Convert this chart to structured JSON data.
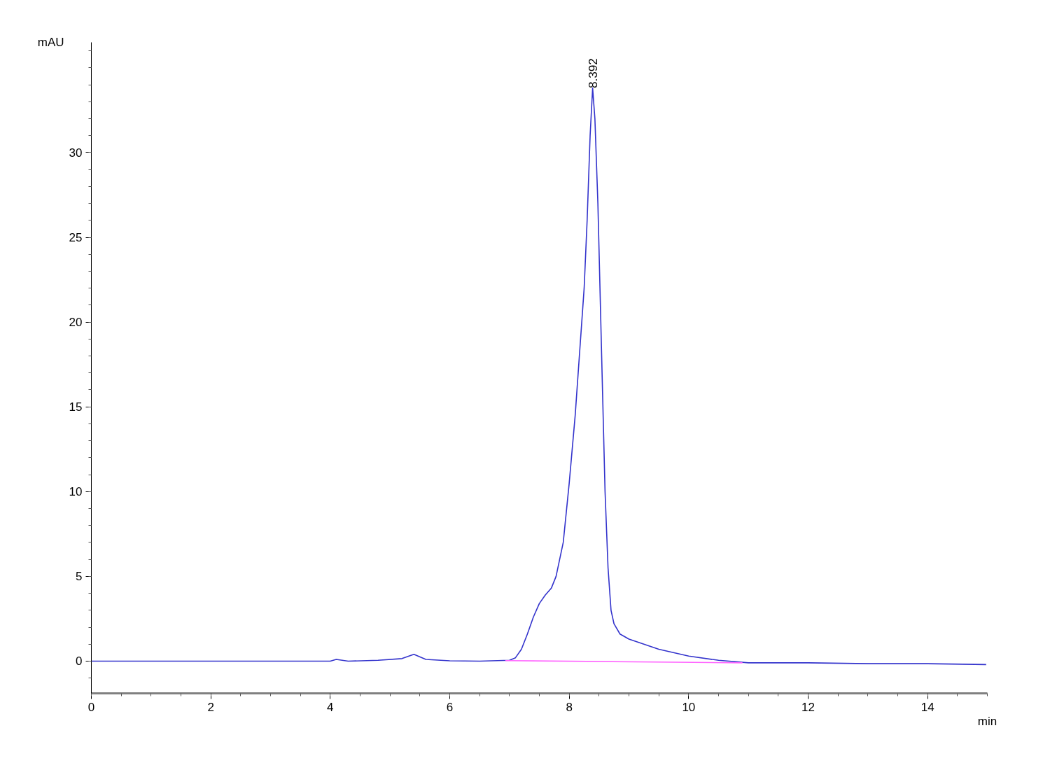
{
  "chart_data": {
    "type": "line",
    "xlabel": "min",
    "ylabel": "mAU",
    "xlim": [
      0,
      15
    ],
    "ylim": [
      -1.9,
      36.5
    ],
    "xticks": [
      0,
      2,
      4,
      6,
      8,
      10,
      12,
      14
    ],
    "yticks": [
      0,
      5,
      10,
      15,
      20,
      25,
      30
    ],
    "grid": false,
    "marker": "none",
    "line_style": "solid",
    "annotations": [
      {
        "text": "8.392",
        "x": 8.392,
        "y": 33.8
      }
    ],
    "series": [
      {
        "color": "#3333cc",
        "x": [
          0,
          1,
          2,
          3,
          4,
          4.1,
          4.3,
          4.8,
          5.2,
          5.4,
          5.6,
          6.0,
          6.5,
          7.0,
          7.1,
          7.2,
          7.3,
          7.4,
          7.5,
          7.6,
          7.7,
          7.78,
          7.9,
          8.0,
          8.1,
          8.2,
          8.25,
          8.3,
          8.35,
          8.392,
          8.43,
          8.48,
          8.55,
          8.6,
          8.65,
          8.7,
          8.75,
          8.85,
          9.0,
          9.5,
          10.0,
          10.5,
          11.0,
          12.0,
          13.0,
          14.0,
          14.98
        ],
        "values": [
          0,
          0,
          0,
          0,
          0,
          0.1,
          0,
          0.05,
          0.15,
          0.4,
          0.1,
          0.02,
          0,
          0.05,
          0.2,
          0.7,
          1.6,
          2.6,
          3.4,
          3.9,
          4.3,
          5,
          7,
          10.5,
          14.5,
          19.5,
          22,
          26,
          31,
          33.8,
          32,
          27,
          17,
          10,
          5.5,
          3,
          2.2,
          1.6,
          1.3,
          0.7,
          0.3,
          0.05,
          -0.1,
          -0.1,
          -0.15,
          -0.15,
          -0.2
        ]
      },
      {
        "color": "#ff66ff",
        "x": [
          6.93,
          10.9
        ],
        "values": [
          0.03,
          -0.1
        ]
      }
    ]
  }
}
